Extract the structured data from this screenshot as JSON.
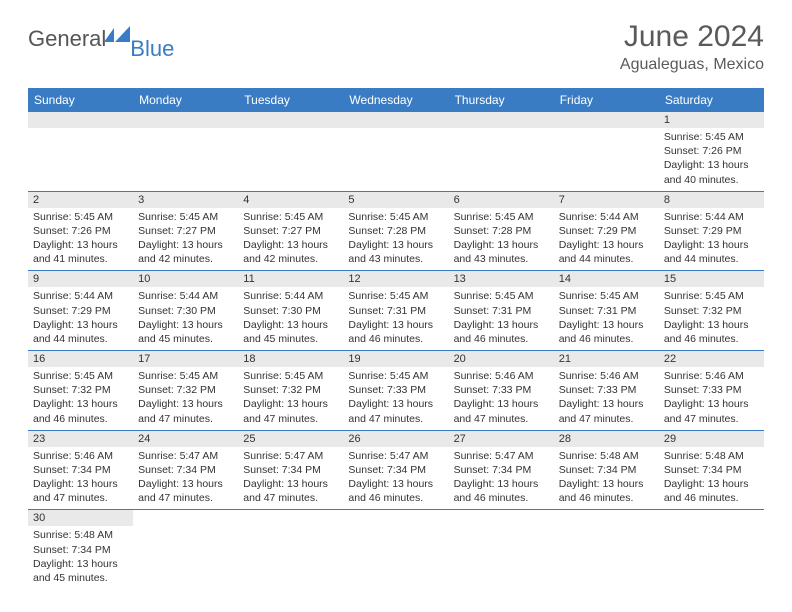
{
  "logo": {
    "general": "General",
    "blue": "Blue",
    "icon_name": "flag-icon",
    "icon_color": "#3a7cc4"
  },
  "title": "June 2024",
  "location": "Agualeguas, Mexico",
  "weekdays": [
    "Sunday",
    "Monday",
    "Tuesday",
    "Wednesday",
    "Thursday",
    "Friday",
    "Saturday"
  ],
  "colors": {
    "header_bg": "#3a7cc4",
    "header_text": "#ffffff",
    "daynum_bg": "#e9e9e9",
    "text": "#333333",
    "divider": "#3a7cc4",
    "title_text": "#5a5a5a"
  },
  "weeks": [
    [
      {
        "empty": true
      },
      {
        "empty": true
      },
      {
        "empty": true
      },
      {
        "empty": true
      },
      {
        "empty": true
      },
      {
        "empty": true
      },
      {
        "day": "1",
        "sunrise": "Sunrise: 5:45 AM",
        "sunset": "Sunset: 7:26 PM",
        "daylight1": "Daylight: 13 hours",
        "daylight2": "and 40 minutes."
      }
    ],
    [
      {
        "day": "2",
        "sunrise": "Sunrise: 5:45 AM",
        "sunset": "Sunset: 7:26 PM",
        "daylight1": "Daylight: 13 hours",
        "daylight2": "and 41 minutes."
      },
      {
        "day": "3",
        "sunrise": "Sunrise: 5:45 AM",
        "sunset": "Sunset: 7:27 PM",
        "daylight1": "Daylight: 13 hours",
        "daylight2": "and 42 minutes."
      },
      {
        "day": "4",
        "sunrise": "Sunrise: 5:45 AM",
        "sunset": "Sunset: 7:27 PM",
        "daylight1": "Daylight: 13 hours",
        "daylight2": "and 42 minutes."
      },
      {
        "day": "5",
        "sunrise": "Sunrise: 5:45 AM",
        "sunset": "Sunset: 7:28 PM",
        "daylight1": "Daylight: 13 hours",
        "daylight2": "and 43 minutes."
      },
      {
        "day": "6",
        "sunrise": "Sunrise: 5:45 AM",
        "sunset": "Sunset: 7:28 PM",
        "daylight1": "Daylight: 13 hours",
        "daylight2": "and 43 minutes."
      },
      {
        "day": "7",
        "sunrise": "Sunrise: 5:44 AM",
        "sunset": "Sunset: 7:29 PM",
        "daylight1": "Daylight: 13 hours",
        "daylight2": "and 44 minutes."
      },
      {
        "day": "8",
        "sunrise": "Sunrise: 5:44 AM",
        "sunset": "Sunset: 7:29 PM",
        "daylight1": "Daylight: 13 hours",
        "daylight2": "and 44 minutes."
      }
    ],
    [
      {
        "day": "9",
        "sunrise": "Sunrise: 5:44 AM",
        "sunset": "Sunset: 7:29 PM",
        "daylight1": "Daylight: 13 hours",
        "daylight2": "and 44 minutes."
      },
      {
        "day": "10",
        "sunrise": "Sunrise: 5:44 AM",
        "sunset": "Sunset: 7:30 PM",
        "daylight1": "Daylight: 13 hours",
        "daylight2": "and 45 minutes."
      },
      {
        "day": "11",
        "sunrise": "Sunrise: 5:44 AM",
        "sunset": "Sunset: 7:30 PM",
        "daylight1": "Daylight: 13 hours",
        "daylight2": "and 45 minutes."
      },
      {
        "day": "12",
        "sunrise": "Sunrise: 5:45 AM",
        "sunset": "Sunset: 7:31 PM",
        "daylight1": "Daylight: 13 hours",
        "daylight2": "and 46 minutes."
      },
      {
        "day": "13",
        "sunrise": "Sunrise: 5:45 AM",
        "sunset": "Sunset: 7:31 PM",
        "daylight1": "Daylight: 13 hours",
        "daylight2": "and 46 minutes."
      },
      {
        "day": "14",
        "sunrise": "Sunrise: 5:45 AM",
        "sunset": "Sunset: 7:31 PM",
        "daylight1": "Daylight: 13 hours",
        "daylight2": "and 46 minutes."
      },
      {
        "day": "15",
        "sunrise": "Sunrise: 5:45 AM",
        "sunset": "Sunset: 7:32 PM",
        "daylight1": "Daylight: 13 hours",
        "daylight2": "and 46 minutes."
      }
    ],
    [
      {
        "day": "16",
        "sunrise": "Sunrise: 5:45 AM",
        "sunset": "Sunset: 7:32 PM",
        "daylight1": "Daylight: 13 hours",
        "daylight2": "and 46 minutes."
      },
      {
        "day": "17",
        "sunrise": "Sunrise: 5:45 AM",
        "sunset": "Sunset: 7:32 PM",
        "daylight1": "Daylight: 13 hours",
        "daylight2": "and 47 minutes."
      },
      {
        "day": "18",
        "sunrise": "Sunrise: 5:45 AM",
        "sunset": "Sunset: 7:32 PM",
        "daylight1": "Daylight: 13 hours",
        "daylight2": "and 47 minutes."
      },
      {
        "day": "19",
        "sunrise": "Sunrise: 5:45 AM",
        "sunset": "Sunset: 7:33 PM",
        "daylight1": "Daylight: 13 hours",
        "daylight2": "and 47 minutes."
      },
      {
        "day": "20",
        "sunrise": "Sunrise: 5:46 AM",
        "sunset": "Sunset: 7:33 PM",
        "daylight1": "Daylight: 13 hours",
        "daylight2": "and 47 minutes."
      },
      {
        "day": "21",
        "sunrise": "Sunrise: 5:46 AM",
        "sunset": "Sunset: 7:33 PM",
        "daylight1": "Daylight: 13 hours",
        "daylight2": "and 47 minutes."
      },
      {
        "day": "22",
        "sunrise": "Sunrise: 5:46 AM",
        "sunset": "Sunset: 7:33 PM",
        "daylight1": "Daylight: 13 hours",
        "daylight2": "and 47 minutes."
      }
    ],
    [
      {
        "day": "23",
        "sunrise": "Sunrise: 5:46 AM",
        "sunset": "Sunset: 7:34 PM",
        "daylight1": "Daylight: 13 hours",
        "daylight2": "and 47 minutes."
      },
      {
        "day": "24",
        "sunrise": "Sunrise: 5:47 AM",
        "sunset": "Sunset: 7:34 PM",
        "daylight1": "Daylight: 13 hours",
        "daylight2": "and 47 minutes."
      },
      {
        "day": "25",
        "sunrise": "Sunrise: 5:47 AM",
        "sunset": "Sunset: 7:34 PM",
        "daylight1": "Daylight: 13 hours",
        "daylight2": "and 47 minutes."
      },
      {
        "day": "26",
        "sunrise": "Sunrise: 5:47 AM",
        "sunset": "Sunset: 7:34 PM",
        "daylight1": "Daylight: 13 hours",
        "daylight2": "and 46 minutes."
      },
      {
        "day": "27",
        "sunrise": "Sunrise: 5:47 AM",
        "sunset": "Sunset: 7:34 PM",
        "daylight1": "Daylight: 13 hours",
        "daylight2": "and 46 minutes."
      },
      {
        "day": "28",
        "sunrise": "Sunrise: 5:48 AM",
        "sunset": "Sunset: 7:34 PM",
        "daylight1": "Daylight: 13 hours",
        "daylight2": "and 46 minutes."
      },
      {
        "day": "29",
        "sunrise": "Sunrise: 5:48 AM",
        "sunset": "Sunset: 7:34 PM",
        "daylight1": "Daylight: 13 hours",
        "daylight2": "and 46 minutes."
      }
    ],
    [
      {
        "day": "30",
        "sunrise": "Sunrise: 5:48 AM",
        "sunset": "Sunset: 7:34 PM",
        "daylight1": "Daylight: 13 hours",
        "daylight2": "and 45 minutes.",
        "trailing": true
      },
      {
        "empty": true,
        "trailing": true
      },
      {
        "empty": true,
        "trailing": true
      },
      {
        "empty": true,
        "trailing": true
      },
      {
        "empty": true,
        "trailing": true
      },
      {
        "empty": true,
        "trailing": true
      },
      {
        "empty": true,
        "trailing": true
      }
    ]
  ]
}
